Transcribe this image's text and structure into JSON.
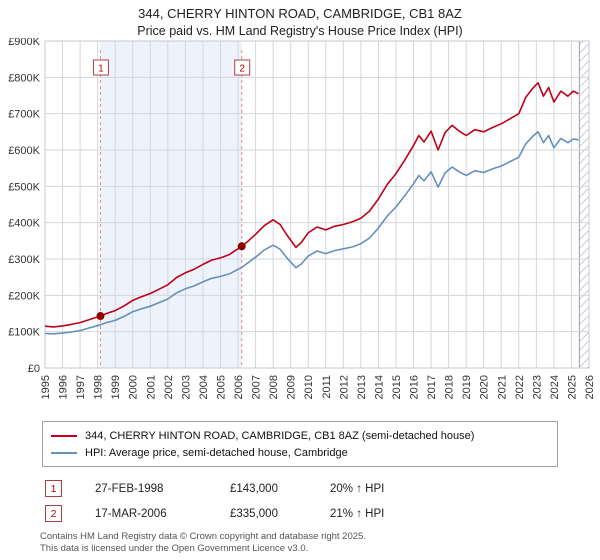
{
  "chart_data": {
    "type": "line",
    "title": "344, CHERRY HINTON ROAD, CAMBRIDGE, CB1 8AZ",
    "subtitle": "Price paid vs. HM Land Registry's House Price Index (HPI)",
    "xlim": [
      1995,
      2026
    ],
    "ylim": [
      0,
      900000
    ],
    "y_tick_step": 100000,
    "y_ticks": [
      "£0",
      "£100K",
      "£200K",
      "£300K",
      "£400K",
      "£500K",
      "£600K",
      "£700K",
      "£800K",
      "£900K"
    ],
    "x_ticks": [
      1995,
      1996,
      1997,
      1998,
      1999,
      2000,
      2001,
      2002,
      2003,
      2004,
      2005,
      2006,
      2007,
      2008,
      2009,
      2010,
      2011,
      2012,
      2013,
      2014,
      2015,
      2016,
      2017,
      2018,
      2019,
      2020,
      2021,
      2022,
      2023,
      2024,
      2025,
      2026
    ],
    "grid": true,
    "legend_position": "bottom",
    "shaded_span": [
      1998.16,
      2006.21
    ],
    "hatch_span": [
      2025.45,
      2026
    ],
    "colors": {
      "shade": "#edf2fb",
      "sale_dash": "#e08a8a",
      "sale_marker": "#8f0000",
      "grid": "#d2d7de",
      "flag_border": "#b04040",
      "flag_text": "#c00000"
    },
    "sales": [
      {
        "label": "1",
        "x": 1998.16,
        "price_value": 143000,
        "date": "27-FEB-1998",
        "price": "£143,000",
        "hpi": "20% ↑ HPI"
      },
      {
        "label": "2",
        "x": 2006.21,
        "price_value": 335000,
        "date": "17-MAR-2006",
        "price": "£335,000",
        "hpi": "21% ↑ HPI"
      }
    ],
    "series": [
      {
        "name": "344, CHERRY HINTON ROAD, CAMBRIDGE, CB1 8AZ (semi-detached house)",
        "color": "#c00018",
        "x": [
          1995.0,
          1995.5,
          1996.0,
          1996.5,
          1997.0,
          1997.5,
          1998.17,
          1998.5,
          1999.0,
          1999.5,
          2000.0,
          2000.5,
          2001.0,
          2001.5,
          2002.0,
          2002.5,
          2003.0,
          2003.5,
          2004.0,
          2004.5,
          2005.0,
          2005.5,
          2006.21,
          2006.5,
          2007.0,
          2007.5,
          2008.0,
          2008.4,
          2008.8,
          2009.3,
          2009.6,
          2010.0,
          2010.5,
          2011.0,
          2011.5,
          2012.0,
          2012.5,
          2013.0,
          2013.5,
          2014.0,
          2014.5,
          2015.0,
          2015.5,
          2016.0,
          2016.3,
          2016.6,
          2017.0,
          2017.4,
          2017.8,
          2018.2,
          2018.6,
          2019.0,
          2019.5,
          2020.0,
          2020.5,
          2021.0,
          2021.5,
          2022.0,
          2022.4,
          2022.8,
          2023.1,
          2023.4,
          2023.7,
          2024.0,
          2024.4,
          2024.8,
          2025.1,
          2025.4
        ],
        "values": [
          115000,
          113000,
          116000,
          120000,
          125000,
          133000,
          143000,
          150000,
          158000,
          171000,
          186000,
          196000,
          205000,
          217000,
          229000,
          249000,
          262000,
          272000,
          285000,
          297000,
          303000,
          312000,
          335000,
          346000,
          368000,
          392000,
          408000,
          395000,
          365000,
          332000,
          345000,
          372000,
          388000,
          380000,
          390000,
          395000,
          402000,
          412000,
          432000,
          465000,
          505000,
          535000,
          572000,
          612000,
          640000,
          622000,
          652000,
          600000,
          648000,
          668000,
          652000,
          640000,
          656000,
          650000,
          662000,
          672000,
          686000,
          700000,
          745000,
          770000,
          785000,
          748000,
          772000,
          732000,
          762000,
          748000,
          762000,
          755000
        ]
      },
      {
        "name": "HPI: Average price, semi-detached house, Cambridge",
        "color": "#6590bd",
        "x": [
          1995.0,
          1995.5,
          1996.0,
          1996.5,
          1997.0,
          1997.5,
          1998.17,
          1998.5,
          1999.0,
          1999.5,
          2000.0,
          2000.5,
          2001.0,
          2001.5,
          2002.0,
          2002.5,
          2003.0,
          2003.5,
          2004.0,
          2004.5,
          2005.0,
          2005.5,
          2006.21,
          2006.5,
          2007.0,
          2007.5,
          2008.0,
          2008.4,
          2008.8,
          2009.3,
          2009.6,
          2010.0,
          2010.5,
          2011.0,
          2011.5,
          2012.0,
          2012.5,
          2013.0,
          2013.5,
          2014.0,
          2014.5,
          2015.0,
          2015.5,
          2016.0,
          2016.3,
          2016.6,
          2017.0,
          2017.4,
          2017.8,
          2018.2,
          2018.6,
          2019.0,
          2019.5,
          2020.0,
          2020.5,
          2021.0,
          2021.5,
          2022.0,
          2022.4,
          2022.8,
          2023.1,
          2023.4,
          2023.7,
          2024.0,
          2024.4,
          2024.8,
          2025.1,
          2025.4
        ],
        "values": [
          95000,
          94000,
          96000,
          99000,
          103000,
          110000,
          119000,
          125000,
          131000,
          142000,
          155000,
          163000,
          170000,
          180000,
          190000,
          207000,
          218000,
          226000,
          237000,
          247000,
          252000,
          259000,
          277000,
          287000,
          305000,
          325000,
          338000,
          327000,
          302000,
          276000,
          286000,
          308000,
          322000,
          315000,
          323000,
          328000,
          333000,
          342000,
          358000,
          385000,
          418000,
          443000,
          474000,
          507000,
          530000,
          515000,
          540000,
          498000,
          537000,
          553000,
          540000,
          530000,
          543000,
          538000,
          548000,
          556000,
          568000,
          580000,
          617000,
          638000,
          650000,
          620000,
          640000,
          606000,
          632000,
          620000,
          630000,
          628000
        ]
      }
    ]
  },
  "footer": {
    "line1": "Contains HM Land Registry data © Crown copyright and database right 2025.",
    "line2": "This data is licensed under the Open Government Licence v3.0."
  }
}
